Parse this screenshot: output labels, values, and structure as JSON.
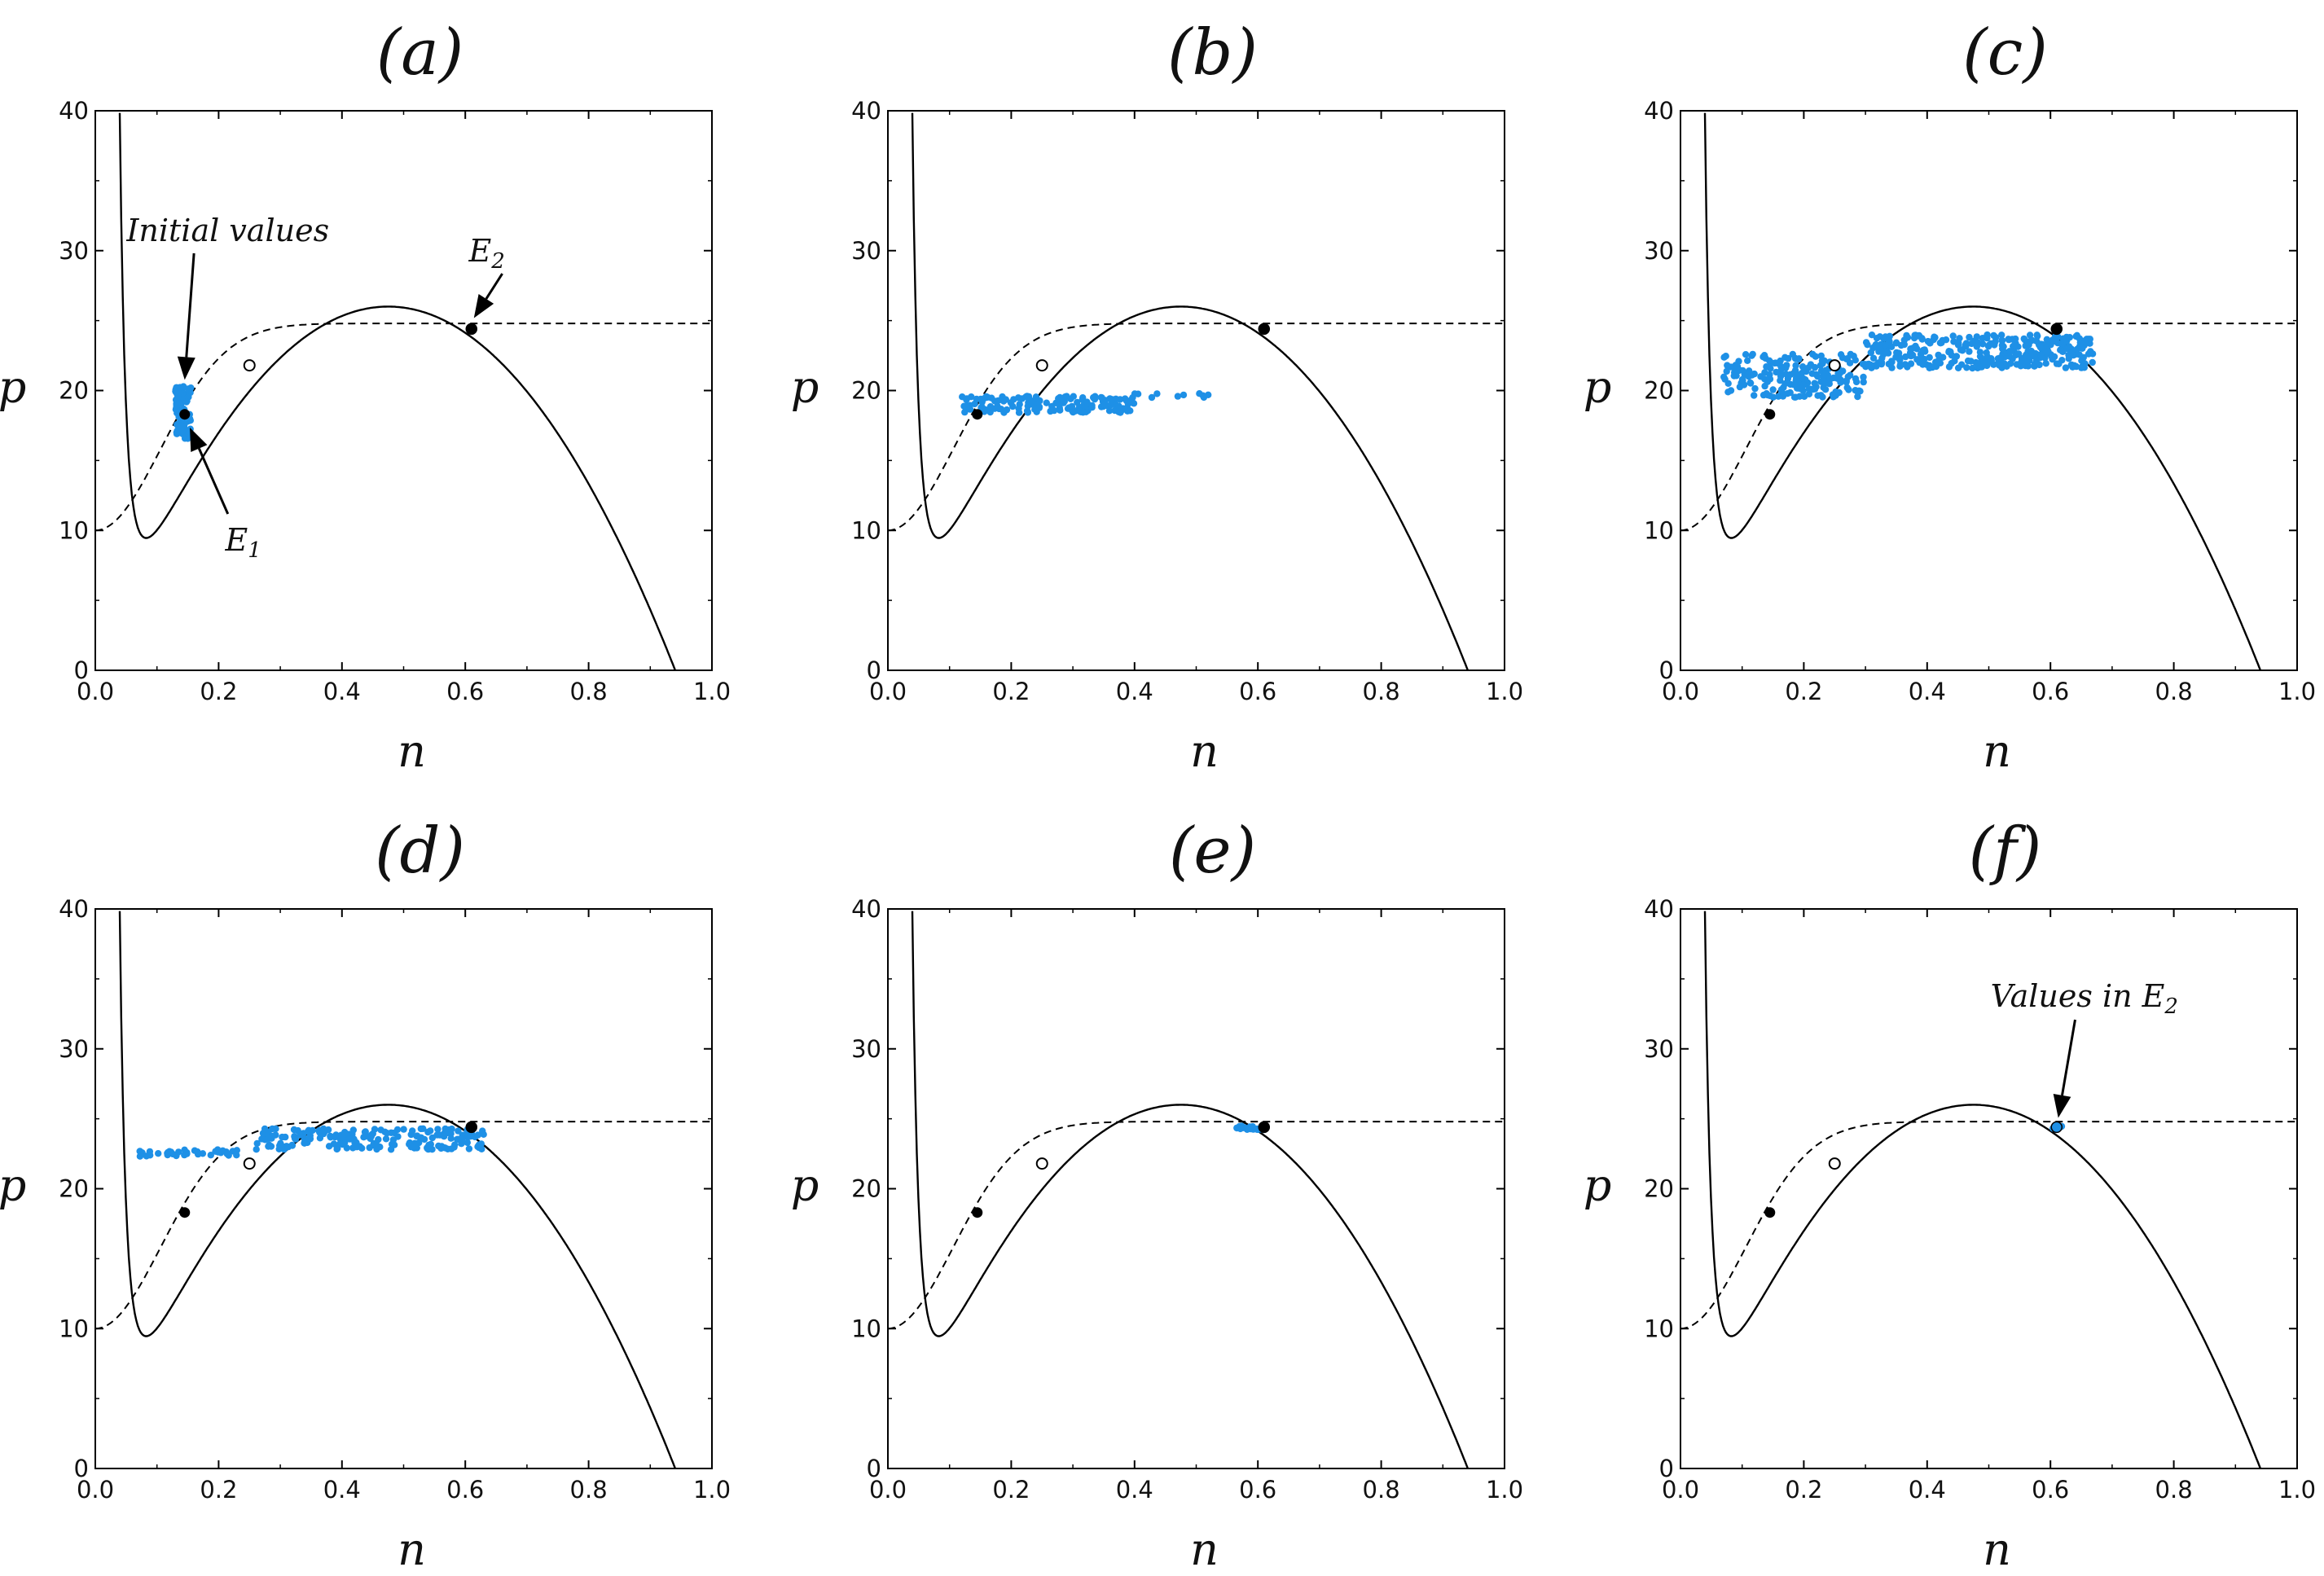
{
  "chart_data": [
    {
      "type": "scatter",
      "panel": "(a)",
      "xlabel": "n",
      "ylabel": "p",
      "xlim": [
        0,
        1
      ],
      "ylim": [
        0,
        40
      ],
      "xticks": [
        "0.0",
        "0.2",
        "0.4",
        "0.6",
        "0.8",
        "1.0"
      ],
      "yticks": [
        "0",
        "10",
        "20",
        "30",
        "40"
      ],
      "equilibria": {
        "E1": [
          0.145,
          18.3
        ],
        "unstable": [
          0.25,
          21.8
        ],
        "E2": [
          0.61,
          24.4
        ]
      },
      "population": {
        "description": "initial values",
        "n_range": [
          0.13,
          0.155
        ],
        "p_range": [
          16.5,
          20.3
        ],
        "clusters": [
          {
            "x0": 0.13,
            "x1": 0.155,
            "y0": 16.5,
            "y1": 20.3,
            "count": 120
          }
        ]
      },
      "annotations": [
        {
          "text": "Initial values",
          "points_to": [
            0.145,
            20.3
          ]
        },
        {
          "text": "E",
          "sub": "1",
          "points_to": [
            0.148,
            17.7
          ]
        },
        {
          "text": "E",
          "sub": "2",
          "points_to": [
            0.61,
            24.6
          ]
        }
      ]
    },
    {
      "type": "scatter",
      "panel": "(b)",
      "xlabel": "n",
      "ylabel": "p",
      "xlim": [
        0,
        1
      ],
      "ylim": [
        0,
        40
      ],
      "xticks": [
        "0.0",
        "0.2",
        "0.4",
        "0.6",
        "0.8",
        "1.0"
      ],
      "yticks": [
        "0",
        "10",
        "20",
        "30",
        "40"
      ],
      "equilibria": {
        "E1": [
          0.145,
          18.3
        ],
        "unstable": [
          0.25,
          21.8
        ],
        "E2": [
          0.61,
          24.4
        ]
      },
      "population": {
        "description": "streak",
        "n_range": [
          0.12,
          0.53
        ],
        "p_range": [
          18.4,
          19.8
        ],
        "clusters": [
          {
            "x0": 0.12,
            "x1": 0.4,
            "y0": 18.4,
            "y1": 19.6,
            "count": 150
          },
          {
            "x0": 0.4,
            "x1": 0.53,
            "y0": 19.5,
            "y1": 19.8,
            "count": 10
          }
        ]
      },
      "annotations": []
    },
    {
      "type": "scatter",
      "panel": "(c)",
      "xlabel": "n",
      "ylabel": "p",
      "xlim": [
        0,
        1
      ],
      "ylim": [
        0,
        40
      ],
      "xticks": [
        "0.0",
        "0.2",
        "0.4",
        "0.6",
        "0.8",
        "1.0"
      ],
      "yticks": [
        "0",
        "10",
        "20",
        "30",
        "40"
      ],
      "equilibria": {
        "E1": [
          0.145,
          18.3
        ],
        "unstable": [
          0.25,
          21.8
        ],
        "E2": [
          0.61,
          24.4
        ]
      },
      "population": {
        "description": "cloud",
        "n_range": [
          0.07,
          0.67
        ],
        "p_range": [
          19.5,
          24.0
        ],
        "clusters": [
          {
            "x0": 0.07,
            "x1": 0.3,
            "y0": 19.5,
            "y1": 22.6,
            "count": 200
          },
          {
            "x0": 0.3,
            "x1": 0.67,
            "y0": 21.6,
            "y1": 24.0,
            "count": 350
          }
        ]
      },
      "annotations": []
    },
    {
      "type": "scatter",
      "panel": "(d)",
      "xlabel": "n",
      "ylabel": "p",
      "xlim": [
        0,
        1
      ],
      "ylim": [
        0,
        40
      ],
      "xticks": [
        "0.0",
        "0.2",
        "0.4",
        "0.6",
        "0.8",
        "1.0"
      ],
      "yticks": [
        "0",
        "10",
        "20",
        "30",
        "40"
      ],
      "equilibria": {
        "E1": [
          0.145,
          18.3
        ],
        "unstable": [
          0.25,
          21.8
        ],
        "E2": [
          0.61,
          24.4
        ]
      },
      "population": {
        "description": "bands",
        "n_range": [
          0.07,
          0.63
        ],
        "p_range": [
          22.3,
          24.3
        ],
        "clusters": [
          {
            "x0": 0.07,
            "x1": 0.23,
            "y0": 22.3,
            "y1": 22.8,
            "count": 40
          },
          {
            "x0": 0.25,
            "x1": 0.63,
            "y0": 22.8,
            "y1": 23.3,
            "count": 80
          },
          {
            "x0": 0.27,
            "x1": 0.63,
            "y0": 23.5,
            "y1": 24.3,
            "count": 120
          }
        ]
      },
      "annotations": []
    },
    {
      "type": "scatter",
      "panel": "(e)",
      "xlabel": "n",
      "ylabel": "p",
      "xlim": [
        0,
        1
      ],
      "ylim": [
        0,
        40
      ],
      "xticks": [
        "0.0",
        "0.2",
        "0.4",
        "0.6",
        "0.8",
        "1.0"
      ],
      "yticks": [
        "0",
        "10",
        "20",
        "30",
        "40"
      ],
      "equilibria": {
        "E1": [
          0.145,
          18.3
        ],
        "unstable": [
          0.25,
          21.8
        ],
        "E2": [
          0.61,
          24.4
        ]
      },
      "population": {
        "description": "near E2",
        "n_range": [
          0.56,
          0.61
        ],
        "p_range": [
          24.2,
          24.5
        ],
        "clusters": [
          {
            "x0": 0.56,
            "x1": 0.61,
            "y0": 24.2,
            "y1": 24.5,
            "count": 30
          }
        ]
      },
      "annotations": []
    },
    {
      "type": "scatter",
      "panel": "(f)",
      "xlabel": "n",
      "ylabel": "p",
      "xlim": [
        0,
        1
      ],
      "ylim": [
        0,
        40
      ],
      "xticks": [
        "0.0",
        "0.2",
        "0.4",
        "0.6",
        "0.8",
        "1.0"
      ],
      "yticks": [
        "0",
        "10",
        "20",
        "30",
        "40"
      ],
      "equilibria": {
        "E1": [
          0.145,
          18.3
        ],
        "unstable": [
          0.25,
          21.8
        ],
        "E2": [
          0.61,
          24.4
        ]
      },
      "population": {
        "description": "converged at E2",
        "n_range": [
          0.6,
          0.62
        ],
        "p_range": [
          24.3,
          24.5
        ],
        "clusters": [
          {
            "x0": 0.6,
            "x1": 0.62,
            "y0": 24.3,
            "y1": 24.5,
            "count": 6
          }
        ]
      },
      "annotations": [
        {
          "text": "Values in E",
          "sub": "2",
          "points_to": [
            0.61,
            24.6
          ]
        }
      ]
    }
  ],
  "colors": {
    "points": "#1e90e6",
    "curves": "#000000",
    "open_marker": "#ffffff"
  }
}
